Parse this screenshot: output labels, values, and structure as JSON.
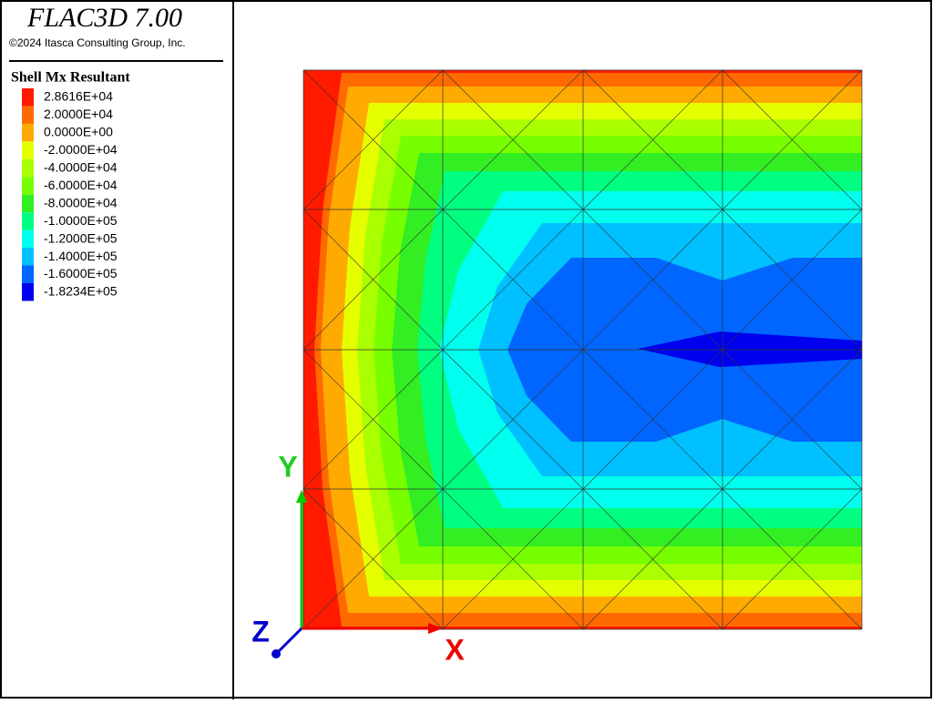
{
  "header": {
    "title": "FLAC3D 7.00",
    "copyright": "©2024 Itasca Consulting Group, Inc."
  },
  "legend": {
    "title": "Shell Mx Resultant",
    "entries": [
      {
        "label": "2.8616E+04",
        "color": "#ff1a00"
      },
      {
        "label": "2.0000E+04",
        "color": "#ff6a00"
      },
      {
        "label": "0.0000E+00",
        "color": "#ffaa00"
      },
      {
        "label": "-2.0000E+04",
        "color": "#e6ff00"
      },
      {
        "label": "-4.0000E+04",
        "color": "#aaff00"
      },
      {
        "label": "-6.0000E+04",
        "color": "#77ff00"
      },
      {
        "label": "-8.0000E+04",
        "color": "#33ee22"
      },
      {
        "label": "-1.0000E+05",
        "color": "#00ff80"
      },
      {
        "label": "-1.2000E+05",
        "color": "#00ffee"
      },
      {
        "label": "-1.4000E+05",
        "color": "#00c0ff"
      },
      {
        "label": "-1.6000E+05",
        "color": "#0066ff"
      },
      {
        "label": "-1.8234E+05",
        "color": "#0000ee"
      }
    ]
  },
  "axes": {
    "x": "X",
    "y": "Y",
    "z": "Z"
  }
}
